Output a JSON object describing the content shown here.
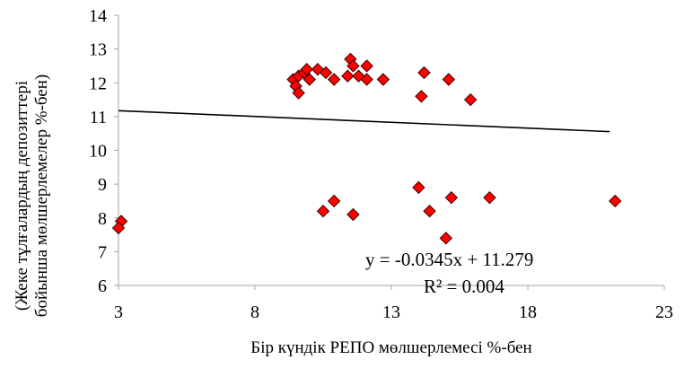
{
  "chart_data": {
    "type": "scatter",
    "title": "",
    "xlabel": "Бір күндік РЕПО мөлшерлемесі %-бен",
    "ylabel_lines": [
      "(Жеке тұлғалардың депозиттері",
      "бойынша мөлшерлемелер  %-бен)"
    ],
    "xlim": [
      3,
      23
    ],
    "ylim": [
      6,
      14
    ],
    "x_ticks": [
      3,
      8,
      13,
      18,
      23
    ],
    "y_ticks": [
      6,
      7,
      8,
      9,
      10,
      11,
      12,
      13,
      14
    ],
    "grid": false,
    "marker": "diamond",
    "colors": {
      "marker_fill": "#ff0000",
      "marker_edge": "#3a0000",
      "trend": "#000000",
      "axis": "#a6a6a6"
    },
    "series": [
      {
        "points": [
          [
            3.1,
            7.9
          ],
          [
            3.0,
            7.7
          ],
          [
            9.4,
            12.1
          ],
          [
            9.5,
            11.9
          ],
          [
            9.6,
            11.7
          ],
          [
            9.6,
            12.2
          ],
          [
            9.8,
            12.3
          ],
          [
            9.9,
            12.4
          ],
          [
            10.0,
            12.1
          ],
          [
            10.3,
            12.4
          ],
          [
            10.6,
            12.3
          ],
          [
            10.9,
            12.1
          ],
          [
            11.4,
            12.2
          ],
          [
            11.5,
            12.7
          ],
          [
            11.6,
            12.5
          ],
          [
            11.8,
            12.2
          ],
          [
            12.1,
            12.5
          ],
          [
            12.1,
            12.1
          ],
          [
            12.7,
            12.1
          ],
          [
            14.1,
            11.6
          ],
          [
            14.2,
            12.3
          ],
          [
            15.1,
            12.1
          ],
          [
            15.9,
            11.5
          ],
          [
            10.5,
            8.2
          ],
          [
            10.9,
            8.5
          ],
          [
            11.6,
            8.1
          ],
          [
            14.0,
            8.9
          ],
          [
            14.4,
            8.2
          ],
          [
            15.0,
            7.4
          ],
          [
            15.2,
            8.6
          ],
          [
            16.6,
            8.6
          ],
          [
            21.2,
            8.5
          ]
        ]
      }
    ],
    "trendline": {
      "slope": -0.0345,
      "intercept": 11.279,
      "x_range": [
        3,
        21
      ],
      "equation_label": "y = -0.0345x + 11.279",
      "r2_label": "R² = 0.004"
    }
  }
}
